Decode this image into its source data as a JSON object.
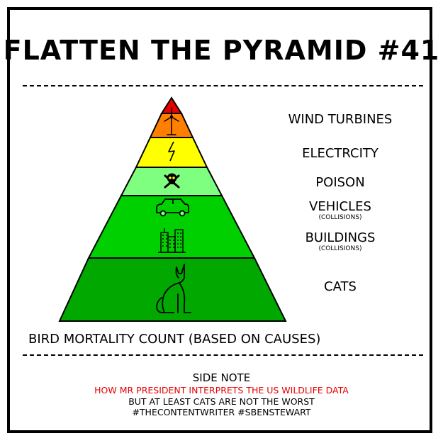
{
  "title": "FLATTEN THE PYRAMID #41",
  "pyramid": {
    "layers": [
      {
        "label": "WIND TURBINES",
        "sub": "",
        "color": "#e60000",
        "icon": "wind-turbine-icon"
      },
      {
        "label": "ELECTRCITY",
        "sub": "",
        "color": "#ff7f00",
        "icon": "lightning-bolt-icon"
      },
      {
        "label": "POISON",
        "sub": "",
        "color": "#ffff00",
        "icon": "skull-crossbones-icon"
      },
      {
        "label": "VEHICLES",
        "sub": "(COLLISIONS)",
        "color": "#7fff7f",
        "icon": "car-icon"
      },
      {
        "label": "BUILDINGS",
        "sub": "(COLLISIONS)",
        "color": "#00d000",
        "icon": "buildings-icon"
      },
      {
        "label": "CATS",
        "sub": "",
        "color": "#00a800",
        "icon": "cat-icon"
      }
    ]
  },
  "caption": "BIRD MORTALITY COUNT (BASED ON CAUSES)",
  "side_note": {
    "heading": "SIDE NOTE",
    "line1": "HOW MR PRESIDENT INTERPRETS THE US WILDLIFE DATA",
    "line2": "BUT AT LEAST CATS ARE NOT THE WORST",
    "line3": "#THECONTENTWRITER #SBENSTEWART",
    "highlight_color": "#e60000"
  }
}
